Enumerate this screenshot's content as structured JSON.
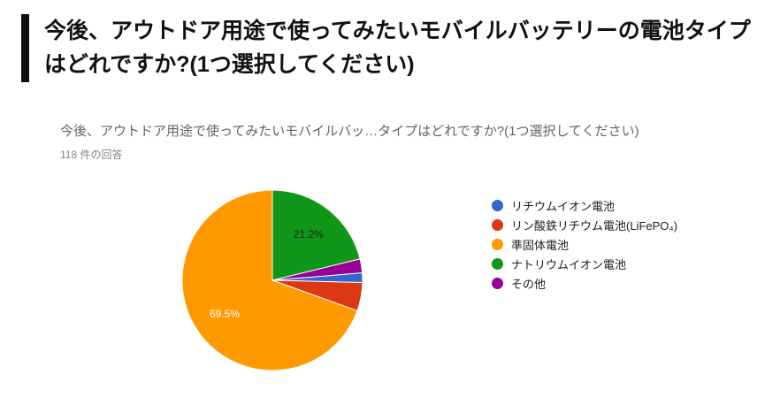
{
  "header": {
    "title": "今後、アウトドア用途で使ってみたいモバイルバッテリーの電池タイプはどれですか?(1つ選択してください)"
  },
  "chart": {
    "title": "今後、アウトドア用途で使ってみたいモバイルバッ…タイプはどれですか?(1つ選択してください)",
    "responses": "118 件の回答"
  },
  "chart_data": {
    "type": "pie",
    "title": "今後、アウトドア用途で使ってみたいモバイルバッ…タイプはどれですか?(1つ選択してください)",
    "subtitle": "118 件の回答",
    "legend_position": "right",
    "categories": [
      "リチウムイオン電池",
      "リン酸鉄リチウム電池(LiFePO₄)",
      "準固体電池",
      "ナトリウムイオン電池",
      "その他"
    ],
    "values_percent": [
      1.7,
      5.1,
      69.5,
      21.2,
      2.5
    ],
    "colors": [
      "#3366cc",
      "#dc3912",
      "#ff9900",
      "#109618",
      "#990099"
    ],
    "slice_labels": [
      "",
      "",
      "69.5%",
      "21.2%",
      ""
    ],
    "slice_label_colors": [
      "#ffffff",
      "#ffffff",
      "#ffffff",
      "#212121",
      "#ffffff"
    ],
    "render_order": [
      3,
      4,
      0,
      1,
      2
    ],
    "start_angle_deg": 0,
    "direction": "clockwise"
  }
}
